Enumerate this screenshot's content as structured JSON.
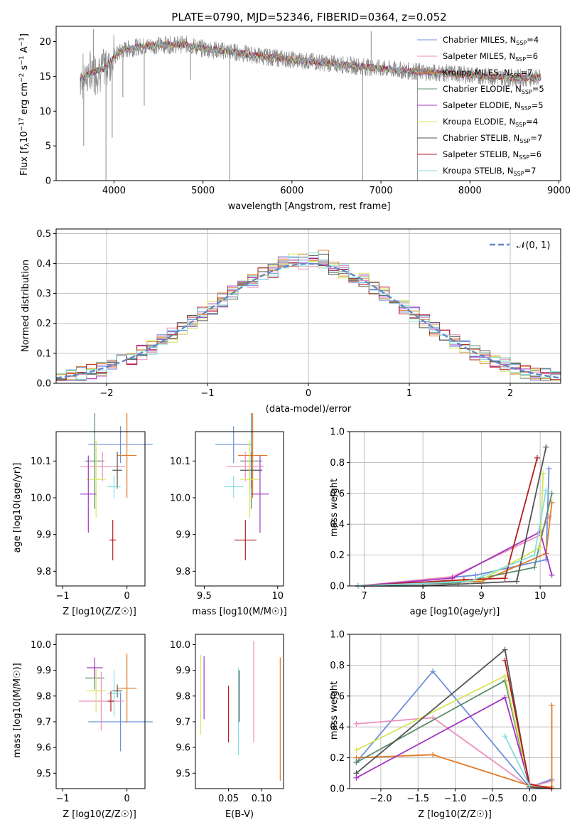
{
  "chart_data": [
    {
      "id": "spectrum",
      "type": "line",
      "title": "PLATE=0790, MJD=52346, FIBERID=0364, z=0.052",
      "xlabel": "wavelength [Angstrom, rest frame]",
      "ylabel": "Flux [f_λ10^-17 erg cm^-2 s^-1 A^-1]",
      "xlim": [
        3350,
        9020
      ],
      "ylim": [
        0,
        22.2
      ],
      "xticks": [
        4000,
        5000,
        6000,
        7000,
        8000,
        9000
      ],
      "yticks": [
        0,
        5,
        10,
        15,
        20
      ],
      "legend_position": "top-right",
      "legend": [
        {
          "label": "Chabrier MILES, N",
          "sub": "SSP",
          "tail": "=4",
          "color": "#6c8fdc"
        },
        {
          "label": "Salpeter MILES, N",
          "sub": "SSP",
          "tail": "=6",
          "color": "#ee8dbb"
        },
        {
          "label": "Kroupa MILES, N",
          "sub": "SSP",
          "tail": "=7",
          "color": "#e07b28"
        },
        {
          "label": "Chabrier ELODIE, N",
          "sub": "SSP",
          "tail": "=5",
          "color": "#5d8c6b"
        },
        {
          "label": "Salpeter ELODIE, N",
          "sub": "SSP",
          "tail": "=5",
          "color": "#a335c2"
        },
        {
          "label": "Kroupa ELODIE, N",
          "sub": "SSP",
          "tail": "=4",
          "color": "#d5e65a"
        },
        {
          "label": "Chabrier STELIB, N",
          "sub": "SSP",
          "tail": "=7",
          "color": "#555555"
        },
        {
          "label": "Salpeter STELIB, N",
          "sub": "SSP",
          "tail": "=6",
          "color": "#b51d1d"
        },
        {
          "label": "Kroupa STELIB, N",
          "sub": "SSP",
          "tail": "=7",
          "color": "#86dde0"
        }
      ],
      "data_color": "#8a8a8a",
      "continuum_points": [
        [
          3620,
          14.6
        ],
        [
          3700,
          15.2
        ],
        [
          3800,
          15.8
        ],
        [
          3900,
          16.2
        ],
        [
          4000,
          17.8
        ],
        [
          4100,
          18.8
        ],
        [
          4300,
          19.3
        ],
        [
          4500,
          19.5
        ],
        [
          4800,
          19.6
        ],
        [
          5000,
          19.0
        ],
        [
          5300,
          18.6
        ],
        [
          5600,
          18.0
        ],
        [
          6000,
          17.4
        ],
        [
          6400,
          16.9
        ],
        [
          6800,
          16.4
        ],
        [
          7100,
          16.0
        ],
        [
          7500,
          15.6
        ],
        [
          7800,
          15.4
        ],
        [
          8200,
          15.0
        ],
        [
          8500,
          14.8
        ],
        [
          8800,
          14.8
        ]
      ],
      "spikes": [
        [
          3910,
          0
        ],
        [
          5300,
          0
        ],
        [
          6795,
          0
        ],
        [
          7410,
          0
        ],
        [
          6890,
          21.5
        ],
        [
          3770,
          21.8
        ],
        [
          3660,
          5.0
        ],
        [
          3980,
          6.2
        ],
        [
          4100,
          12
        ],
        [
          4340,
          10.8
        ],
        [
          4860,
          14.5
        ]
      ]
    },
    {
      "id": "residuals",
      "type": "line",
      "xlabel": "(data-model)/error",
      "ylabel": "Normed distribution",
      "xlim": [
        -2.5,
        2.5
      ],
      "ylim": [
        0,
        0.515
      ],
      "xticks": [
        -2,
        -1,
        0,
        1,
        2
      ],
      "yticks": [
        0.0,
        0.1,
        0.2,
        0.3,
        0.4,
        0.5
      ],
      "grid": true,
      "legend_position": "top-right",
      "legend": [
        {
          "label": "𝒩(0, 1)",
          "color": "#5e86c9",
          "style": "dashed"
        }
      ],
      "gaussian": {
        "mean": 0,
        "sigma": 1
      }
    },
    {
      "id": "age_vs_Z",
      "type": "scatter",
      "xlabel": "Z [log10(Z/Z☉)]",
      "ylabel": "age [log10(age/yr)]",
      "xlim": [
        -1.1,
        0.28
      ],
      "ylim": [
        9.76,
        10.18
      ],
      "xticks": [
        -1,
        0
      ],
      "yticks": [
        9.8,
        9.9,
        10.0,
        10.1
      ],
      "points": [
        {
          "x": -0.1,
          "y": 10.145,
          "xerr": 1.0,
          "yerr": 0.1,
          "color": "#6c8fdc"
        },
        {
          "x": 0.0,
          "y": 10.115,
          "xerr": 0.3,
          "yerr": 0.23,
          "color": "#e07b28"
        },
        {
          "x": -0.5,
          "y": 10.1,
          "xerr": 0.3,
          "yerr": 0.26,
          "color": "#5d8c6b"
        },
        {
          "x": -0.38,
          "y": 10.085,
          "xerr": 0.7,
          "yerr": 0.08,
          "color": "#ee8dbb"
        },
        {
          "x": -0.15,
          "y": 10.075,
          "xerr": 0.15,
          "yerr": 0.1,
          "color": "#555555"
        },
        {
          "x": -0.48,
          "y": 10.05,
          "xerr": 0.3,
          "yerr": 0.21,
          "color": "#d5e65a"
        },
        {
          "x": -0.2,
          "y": 10.03,
          "xerr": 0.2,
          "yerr": 0.06,
          "color": "#86dde0"
        },
        {
          "x": -0.6,
          "y": 10.01,
          "xerr": 0.25,
          "yerr": 0.21,
          "color": "#a335c2"
        },
        {
          "x": -0.22,
          "y": 9.885,
          "xerr": 0.1,
          "yerr": 0.11,
          "color": "#b51d1d"
        }
      ]
    },
    {
      "id": "age_vs_mass",
      "type": "scatter",
      "xlabel": "mass [log10(M/M☉)]",
      "xlim": [
        9.44,
        10.04
      ],
      "ylim": [
        9.76,
        10.18
      ],
      "xticks": [
        9.5,
        10.0
      ],
      "yticks": [
        9.8,
        9.9,
        10.0,
        10.1
      ],
      "points": [
        {
          "x": 9.7,
          "y": 10.145,
          "xerr": 0.25,
          "yerr": 0.1,
          "color": "#6c8fdc"
        },
        {
          "x": 9.83,
          "y": 10.115,
          "xerr": 0.2,
          "yerr": 0.23,
          "color": "#e07b28"
        },
        {
          "x": 9.82,
          "y": 10.1,
          "xerr": 0.15,
          "yerr": 0.26,
          "color": "#5d8c6b"
        },
        {
          "x": 9.78,
          "y": 10.085,
          "xerr": 0.25,
          "yerr": 0.08,
          "color": "#ee8dbb"
        },
        {
          "x": 9.82,
          "y": 10.075,
          "xerr": 0.15,
          "yerr": 0.1,
          "color": "#555555"
        },
        {
          "x": 9.81,
          "y": 10.05,
          "xerr": 0.13,
          "yerr": 0.21,
          "color": "#d5e65a"
        },
        {
          "x": 9.7,
          "y": 10.03,
          "xerr": 0.13,
          "yerr": 0.06,
          "color": "#86dde0"
        },
        {
          "x": 9.88,
          "y": 10.01,
          "xerr": 0.12,
          "yerr": 0.21,
          "color": "#a335c2"
        },
        {
          "x": 9.78,
          "y": 9.885,
          "xerr": 0.15,
          "yerr": 0.11,
          "color": "#b51d1d"
        }
      ]
    },
    {
      "id": "massweight_vs_age",
      "type": "line",
      "xlabel": "age [log10(age/yr)]",
      "ylabel": "mass weight",
      "xlim": [
        6.75,
        10.35
      ],
      "ylim": [
        0,
        1.0
      ],
      "xticks": [
        7,
        8,
        9,
        10
      ],
      "yticks": [
        0.0,
        0.2,
        0.4,
        0.6,
        0.8,
        1.0
      ],
      "grid": true,
      "series": [
        {
          "color": "#6c8fdc",
          "x": [
            6.9,
            8.9,
            10.1,
            10.15
          ],
          "y": [
            0.0,
            0.07,
            0.17,
            0.76
          ]
        },
        {
          "color": "#ee8dbb",
          "x": [
            6.9,
            8.5,
            10.0,
            10.15
          ],
          "y": [
            0.0,
            0.06,
            0.33,
            0.45
          ]
        },
        {
          "color": "#e07b28",
          "x": [
            6.9,
            9.0,
            10.1,
            10.2
          ],
          "y": [
            0.0,
            0.03,
            0.21,
            0.54
          ]
        },
        {
          "color": "#5d8c6b",
          "x": [
            6.9,
            8.6,
            9.9,
            10.2
          ],
          "y": [
            0.0,
            0.02,
            0.12,
            0.6
          ]
        },
        {
          "color": "#a335c2",
          "x": [
            6.9,
            8.5,
            10.0,
            10.2
          ],
          "y": [
            0.0,
            0.05,
            0.35,
            0.07
          ]
        },
        {
          "color": "#d5e65a",
          "x": [
            6.9,
            9.0,
            10.0,
            10.05
          ],
          "y": [
            0.0,
            0.04,
            0.25,
            0.73
          ]
        },
        {
          "color": "#555555",
          "x": [
            6.9,
            8.0,
            9.6,
            10.1
          ],
          "y": [
            0.0,
            0.0,
            0.03,
            0.9
          ]
        },
        {
          "color": "#b51d1d",
          "x": [
            6.9,
            8.7,
            9.4,
            9.95
          ],
          "y": [
            0.0,
            0.04,
            0.05,
            0.83
          ]
        },
        {
          "color": "#86dde0",
          "x": [
            6.9,
            8.8,
            9.9,
            10.1
          ],
          "y": [
            0.0,
            0.03,
            0.2,
            0.62
          ]
        }
      ]
    },
    {
      "id": "mass_vs_Z",
      "type": "scatter",
      "xlabel": "Z [log10(Z/Z☉)]",
      "ylabel": "mass [log10(M/M☉)]",
      "xlim": [
        -1.1,
        0.28
      ],
      "ylim": [
        9.44,
        10.04
      ],
      "xticks": [
        -1,
        0
      ],
      "yticks": [
        9.5,
        9.6,
        9.7,
        9.8,
        9.9,
        10.0
      ],
      "points": [
        {
          "x": -0.1,
          "y": 9.7,
          "xerr": 1.0,
          "yerr": 0.23,
          "color": "#6c8fdc"
        },
        {
          "x": 0.0,
          "y": 9.83,
          "xerr": 0.3,
          "yerr": 0.27,
          "color": "#e07b28"
        },
        {
          "x": -0.5,
          "y": 9.87,
          "xerr": 0.3,
          "yerr": 0.09,
          "color": "#5d8c6b"
        },
        {
          "x": -0.4,
          "y": 9.78,
          "xerr": 0.7,
          "yerr": 0.23,
          "color": "#ee8dbb"
        },
        {
          "x": -0.15,
          "y": 9.82,
          "xerr": 0.15,
          "yerr": 0.05,
          "color": "#555555"
        },
        {
          "x": -0.48,
          "y": 9.82,
          "xerr": 0.3,
          "yerr": 0.17,
          "color": "#d5e65a"
        },
        {
          "x": -0.2,
          "y": 9.81,
          "xerr": 0.2,
          "yerr": 0.18,
          "color": "#86dde0"
        },
        {
          "x": -0.5,
          "y": 9.91,
          "xerr": 0.25,
          "yerr": 0.08,
          "color": "#a335c2"
        },
        {
          "x": -0.25,
          "y": 9.78,
          "xerr": 0.1,
          "yerr": 0.08,
          "color": "#b51d1d"
        }
      ]
    },
    {
      "id": "ebv",
      "type": "scatter",
      "xlabel": "E(B-V)",
      "xlim": [
        0.0,
        0.133
      ],
      "ylim": [
        9.44,
        10.04
      ],
      "xticks": [
        0.05,
        0.1
      ],
      "ytick_labels": [
        "9.5",
        "9.6",
        "9.7",
        "9.8",
        "9.9",
        "10.0"
      ],
      "xtick_labels": [
        "0.05",
        "0.10"
      ],
      "yticks": [
        9.5,
        9.6,
        9.7,
        9.8,
        9.9,
        10.0
      ],
      "segments": [
        {
          "x": 0.008,
          "y0": 9.65,
          "y1": 9.96,
          "color": "#d5e65a"
        },
        {
          "x": 0.013,
          "y0": 9.71,
          "y1": 9.955,
          "color": "#a335c2"
        },
        {
          "x": 0.05,
          "y0": 9.62,
          "y1": 9.84,
          "color": "#b51d1d"
        },
        {
          "x": 0.065,
          "y0": 9.57,
          "y1": 9.91,
          "color": "#86dde0"
        },
        {
          "x": 0.088,
          "y0": 9.62,
          "y1": 10.015,
          "color": "#ee8dbb"
        },
        {
          "x": 0.128,
          "y0": 9.47,
          "y1": 9.95,
          "color": "#e07b28"
        },
        {
          "x": 0.066,
          "y0": 9.7,
          "y1": 9.9,
          "color": "#555555"
        }
      ]
    },
    {
      "id": "massweight_vs_Z",
      "type": "line",
      "xlabel": "Z [log10(Z/Z☉)]",
      "ylabel": "mass weight",
      "xlim": [
        -2.42,
        0.42
      ],
      "ylim": [
        0,
        1.0
      ],
      "xticks": [
        -2.0,
        -1.5,
        -1.0,
        -0.5,
        0.0
      ],
      "xtick_labels": [
        "−2.0",
        "−1.5",
        "−1.0",
        "−0.5",
        "0.0"
      ],
      "yticks": [
        0.0,
        0.2,
        0.4,
        0.6,
        0.8,
        1.0
      ],
      "grid": true,
      "series": [
        {
          "color": "#6c8fdc",
          "x": [
            -2.33,
            -1.3,
            0.0,
            0.3
          ],
          "y": [
            0.17,
            0.76,
            0.01,
            0.06
          ]
        },
        {
          "color": "#ee8dbb",
          "x": [
            -2.33,
            -1.3,
            0.0,
            0.3
          ],
          "y": [
            0.42,
            0.46,
            0.01,
            0.05
          ]
        },
        {
          "color": "#e07b28",
          "x": [
            -2.33,
            -1.3,
            0.0,
            0.3,
            0.3
          ],
          "y": [
            0.2,
            0.22,
            0.02,
            0.01,
            0.54
          ]
        },
        {
          "color": "#5d8c6b",
          "x": [
            -2.33,
            -0.33,
            0.0
          ],
          "y": [
            0.17,
            0.7,
            0.01
          ]
        },
        {
          "color": "#a335c2",
          "x": [
            -2.33,
            -0.33,
            0.0
          ],
          "y": [
            0.07,
            0.59,
            0.02
          ]
        },
        {
          "color": "#d5e65a",
          "x": [
            -2.33,
            -0.33,
            0.0
          ],
          "y": [
            0.25,
            0.73,
            0.02
          ]
        },
        {
          "color": "#555555",
          "x": [
            -2.33,
            -0.33,
            0.0,
            0.3
          ],
          "y": [
            0.1,
            0.9,
            0.01,
            0.0
          ]
        },
        {
          "color": "#b51d1d",
          "x": [
            -0.33,
            0.0,
            0.3
          ],
          "y": [
            0.83,
            0.03,
            0.0
          ]
        },
        {
          "color": "#86dde0",
          "x": [
            -0.33,
            0.0
          ],
          "y": [
            0.34,
            0.02
          ]
        }
      ]
    }
  ]
}
